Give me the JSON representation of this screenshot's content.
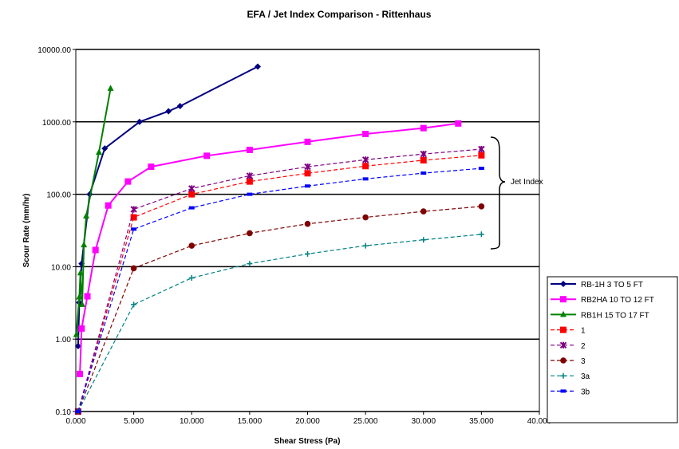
{
  "chart_data": {
    "type": "line",
    "title": "EFA / Jet Index Comparison - Rittenhaus",
    "xlabel": "Shear Stress (Pa)",
    "ylabel": "Scour Rate (mm/hr)",
    "xlim": [
      0,
      40
    ],
    "ylim": [
      0.1,
      10000
    ],
    "yscale": "log",
    "x_ticks": [
      "0.000",
      "5.000",
      "10.000",
      "15.000",
      "20.000",
      "25.000",
      "30.000",
      "35.000",
      "40.000"
    ],
    "y_ticks": [
      "0.10",
      "1.00",
      "10.00",
      "100.00",
      "1000.00",
      "10000.00"
    ],
    "grid": "horizontal major lines",
    "legend_position": "right",
    "annotation": "Jet Index",
    "series": [
      {
        "name": "RB-1H 3 TO 5 FT",
        "color": "#000080",
        "marker": "diamond",
        "dash": "solid",
        "points": [
          [
            0.2,
            0.8
          ],
          [
            0.3,
            3.2
          ],
          [
            0.5,
            11
          ],
          [
            1.2,
            100
          ],
          [
            2.5,
            430
          ],
          [
            5.5,
            1000
          ],
          [
            8.0,
            1400
          ],
          [
            9.0,
            1650
          ],
          [
            15.7,
            5800
          ]
        ]
      },
      {
        "name": "RB2HA 10 TO 12 FT",
        "color": "#FF00FF",
        "marker": "square",
        "dash": "solid",
        "points": [
          [
            0.35,
            0.33
          ],
          [
            0.5,
            1.4
          ],
          [
            1.0,
            3.9
          ],
          [
            1.7,
            17
          ],
          [
            2.8,
            70
          ],
          [
            4.5,
            150
          ],
          [
            6.5,
            240
          ],
          [
            11.3,
            340
          ],
          [
            15,
            410
          ],
          [
            20,
            530
          ],
          [
            25,
            680
          ],
          [
            30,
            820
          ],
          [
            33.0,
            950
          ]
        ]
      },
      {
        "name": "RB1H 15 TO 17 FT",
        "color": "#008000",
        "marker": "triangle",
        "dash": "solid",
        "points": [
          [
            0.05,
            1.15
          ],
          [
            0.3,
            3.8
          ],
          [
            0.4,
            8.2
          ],
          [
            0.55,
            3.0
          ],
          [
            0.7,
            20
          ],
          [
            0.9,
            50
          ],
          [
            2.0,
            380
          ],
          [
            3.0,
            2900
          ]
        ]
      },
      {
        "name": "1",
        "color": "#FF0000",
        "marker": "square",
        "dash": "dashed",
        "points": [
          [
            0.2,
            0.1
          ],
          [
            5,
            48
          ],
          [
            10,
            100
          ],
          [
            15,
            150
          ],
          [
            20,
            195
          ],
          [
            25,
            245
          ],
          [
            30,
            295
          ],
          [
            35,
            345
          ]
        ]
      },
      {
        "name": "2",
        "color": "#800080",
        "marker": "x",
        "dash": "dashed",
        "points": [
          [
            0.2,
            0.1
          ],
          [
            5,
            62
          ],
          [
            10,
            120
          ],
          [
            15,
            180
          ],
          [
            20,
            240
          ],
          [
            25,
            300
          ],
          [
            30,
            360
          ],
          [
            35,
            420
          ]
        ]
      },
      {
        "name": "3",
        "color": "#800000",
        "marker": "circle",
        "dash": "dashed",
        "points": [
          [
            0.2,
            0.1
          ],
          [
            5,
            9.5
          ],
          [
            10,
            19.5
          ],
          [
            15,
            29
          ],
          [
            20,
            39
          ],
          [
            25,
            48
          ],
          [
            30,
            58
          ],
          [
            35,
            68
          ]
        ]
      },
      {
        "name": "3a",
        "color": "#008080",
        "marker": "plus",
        "dash": "dashed",
        "points": [
          [
            0.2,
            0.1
          ],
          [
            5,
            3.0
          ],
          [
            10,
            7.0
          ],
          [
            15,
            11
          ],
          [
            20,
            15
          ],
          [
            25,
            19.5
          ],
          [
            30,
            23.5
          ],
          [
            35,
            28
          ]
        ]
      },
      {
        "name": "3b",
        "color": "#0000FF",
        "marker": "dash",
        "dash": "dashed",
        "points": [
          [
            0.2,
            0.1
          ],
          [
            5,
            33
          ],
          [
            10,
            65
          ],
          [
            15,
            100
          ],
          [
            20,
            130
          ],
          [
            25,
            163
          ],
          [
            30,
            196
          ],
          [
            35,
            228
          ]
        ]
      }
    ]
  }
}
